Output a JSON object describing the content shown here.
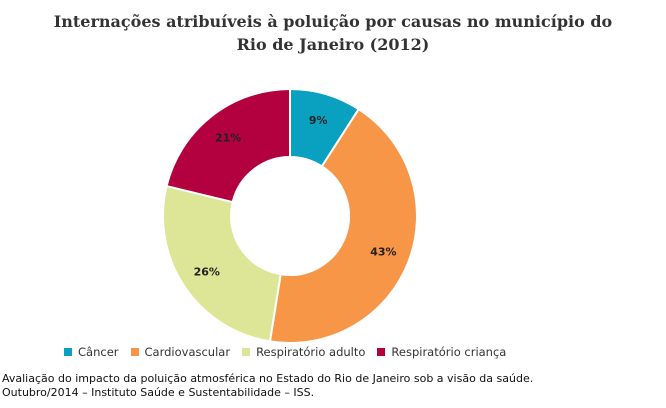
{
  "chart_data": {
    "type": "pie",
    "title": "Internações atribuíveis à poluição por causas no município do Rio de Janeiro (2012)",
    "title_lines": [
      "Internações atribuíveis à poluição por causas no município do",
      "Rio de Janeiro (2012)"
    ],
    "categories": [
      "Câncer",
      "Cardiovascular",
      "Respiratório adulto",
      "Respiratório criança"
    ],
    "values": [
      9,
      43,
      26,
      21
    ],
    "data_labels": [
      "9%",
      "43%",
      "26%",
      "21%"
    ],
    "colors": [
      "#0aa0c0",
      "#f79646",
      "#dde597",
      "#b3003f"
    ],
    "donut": true,
    "legend_position": "bottom"
  },
  "caption": {
    "line1": "Avaliação do impacto da poluição atmosférica no Estado do Rio de Janeiro sob a visão da saúde.",
    "line2": "Outubro/2014 – Instituto Saúde e Sustentabilidade – ISS."
  }
}
